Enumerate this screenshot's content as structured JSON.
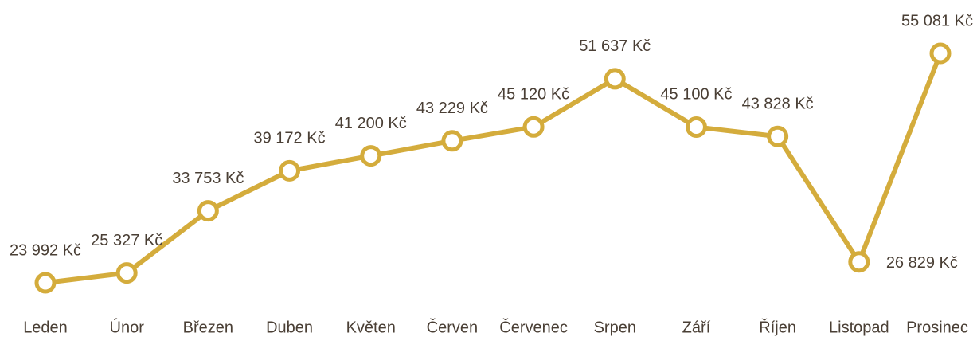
{
  "chart_data": {
    "type": "line",
    "categories": [
      "Leden",
      "Únor",
      "Březen",
      "Duben",
      "Květen",
      "Červen",
      "Červenec",
      "Srpen",
      "Září",
      "Říjen",
      "Listopad",
      "Prosinec"
    ],
    "series": [
      {
        "color": "#d4ac3c",
        "values": [
          23992,
          25327,
          33753,
          39172,
          41200,
          43229,
          45120,
          51637,
          45100,
          43828,
          26829,
          55081
        ],
        "value_labels": [
          "23 992 Kč",
          "25 327 Kč",
          "33 753 Kč",
          "39 172 Kč",
          "41 200 Kč",
          "43 229 Kč",
          "45 120 Kč",
          "51 637 Kč",
          "45 100 Kč",
          "43 828 Kč",
          "26 829 Kč",
          "55 081 Kč"
        ]
      }
    ]
  }
}
